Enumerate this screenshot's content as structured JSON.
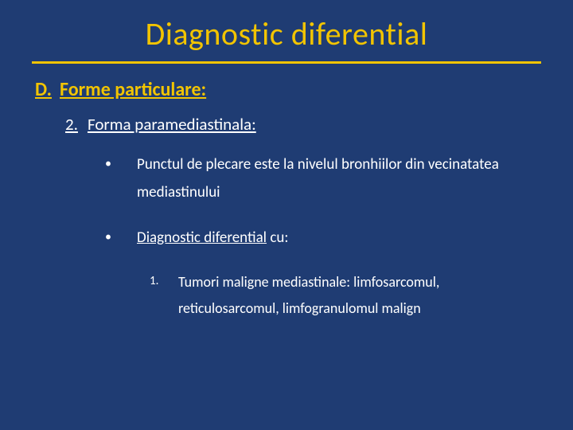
{
  "colors": {
    "background": "#1f3c73",
    "title": "#f2c400",
    "divider": "#f2c400",
    "section": "#f2c400",
    "body": "#ffffff"
  },
  "title": "Diagnostic diferential",
  "section": {
    "letter": "D.",
    "label": "Forme particulare:"
  },
  "subsection": {
    "number": "2.",
    "label": "Forma paramediastinala:"
  },
  "bullets": [
    {
      "text": "Punctul de plecare este la nivelul bronhiilor din vecinatatea mediastinului"
    },
    {
      "underlined_prefix": "Diagnostic diferential",
      "suffix": " cu:",
      "children": [
        {
          "number": "1.",
          "text": "Tumori maligne mediastinale: limfosarcomul, reticulosarcomul, limfogranulomul malign"
        }
      ]
    }
  ]
}
